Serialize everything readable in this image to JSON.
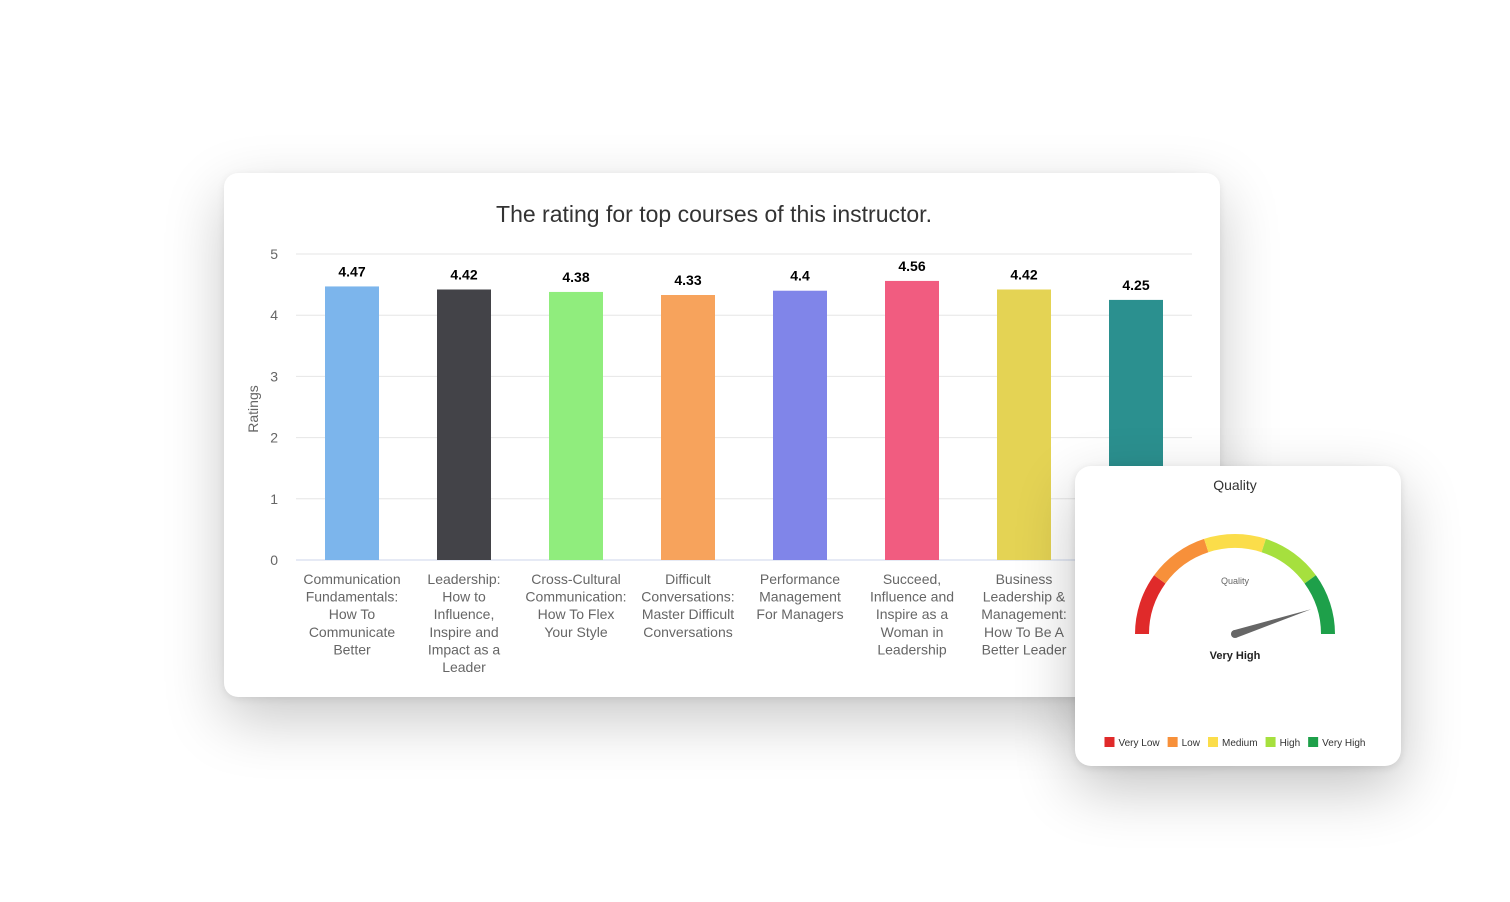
{
  "chart_data": [
    {
      "type": "bar",
      "title": "The rating for top courses of this instructor.",
      "ylabel": "Ratings",
      "xlabel": "",
      "ylim": [
        0,
        5
      ],
      "yticks": [
        0,
        1,
        2,
        3,
        4,
        5
      ],
      "grid": true,
      "categories": [
        [
          "Communication",
          "Fundamentals:",
          "How To",
          "Communicate",
          "Better"
        ],
        [
          "Leadership:",
          "How to",
          "Influence,",
          "Inspire and",
          "Impact as a",
          "Leader"
        ],
        [
          "Cross-Cultural",
          "Communication:",
          "How To Flex",
          "Your Style"
        ],
        [
          "Difficult",
          "Conversations:",
          "Master Difficult",
          "Conversations"
        ],
        [
          "Performance",
          "Management",
          "For Managers"
        ],
        [
          "Succeed,",
          "Influence and",
          "Inspire as a",
          "Woman in",
          "Leadership"
        ],
        [
          "Business",
          "Leadership &",
          "Management:",
          "How To Be A",
          "Better Leader"
        ],
        []
      ],
      "values": [
        4.47,
        4.42,
        4.38,
        4.33,
        4.4,
        4.56,
        4.42,
        4.25
      ],
      "value_labels": [
        "4.47",
        "4.42",
        "4.38",
        "4.33",
        "4.4",
        "4.56",
        "4.42",
        "4.25"
      ],
      "colors": [
        "#7cb5ec",
        "#434348",
        "#90ed7d",
        "#f7a35c",
        "#8085e9",
        "#f15c80",
        "#e4d354",
        "#2b908f"
      ]
    },
    {
      "type": "gauge",
      "title": "Quality",
      "inner_label": "Quality",
      "value_label": "Very High",
      "value_fraction": 0.9,
      "bands": [
        {
          "name": "Very Low",
          "color": "#e02a2a"
        },
        {
          "name": "Low",
          "color": "#f7903a"
        },
        {
          "name": "Medium",
          "color": "#fbdd4a"
        },
        {
          "name": "High",
          "color": "#a6e03e"
        },
        {
          "name": "Very High",
          "color": "#1ea04a"
        }
      ],
      "legend_position": "bottom"
    }
  ]
}
